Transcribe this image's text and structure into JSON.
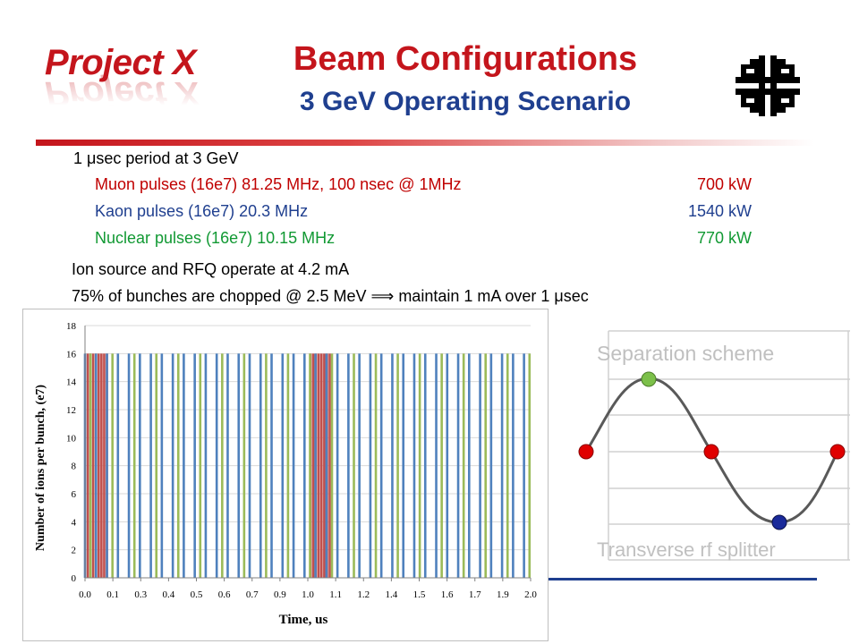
{
  "header": {
    "logo_text": "Project X",
    "title": "Beam Configurations",
    "subtitle": "3 GeV Operating Scenario",
    "fermilab_logo_icon": "fermilab-logo-icon"
  },
  "content": {
    "period_prefix": "1 ",
    "period_mu": "μ",
    "period_suffix": "sec period at 3 GeV",
    "muon": {
      "label": "Muon pulses (16e7) 81.25 MHz, 100 nsec @ 1MHz",
      "power": "700 kW",
      "color": "#c00000"
    },
    "kaon": {
      "label": "Kaon pulses (16e7) 20.3 MHz",
      "power": "1540 kW",
      "color": "#1f3f8f"
    },
    "nuclear": {
      "label": "Nuclear pulses (16e7) 10.15 MHz",
      "power": "770 kW",
      "color": "#119933"
    },
    "ion_source": "Ion source and RFQ operate at 4.2 mA",
    "chop_prefix": "75% of bunches are chopped @ 2.5 MeV ",
    "chop_arrow": "⟹",
    "chop_suffix": " maintain 1 mA over 1 ",
    "chop_mu": "μ",
    "chop_end": "sec"
  },
  "chart_data": {
    "type": "bar",
    "xlabel": "Time, us",
    "ylabel": "Number of ions per bunch, (e7)",
    "ylim": [
      0,
      18
    ],
    "xlim": [
      0,
      2.0
    ],
    "y_ticks": [
      "0",
      "2",
      "4",
      "6",
      "8",
      "10",
      "12",
      "14",
      "16",
      "18"
    ],
    "x_ticks": [
      "0.0",
      "0.1",
      "0.3",
      "0.4",
      "0.5",
      "0.6",
      "0.7",
      "0.9",
      "1.0",
      "1.1",
      "1.2",
      "1.4",
      "1.5",
      "1.6",
      "1.7",
      "1.9",
      "2.0"
    ],
    "grid": "horizontal",
    "series": [
      {
        "color": "#c0504d",
        "values_uniform": 16,
        "x": [
          0.0123,
          0.0246,
          0.0369,
          0.0492,
          0.0615,
          0.0738,
          0.0861,
          0.0984,
          1.0123,
          1.0246,
          1.0369,
          1.0492,
          1.0615,
          1.0738,
          1.0861,
          1.0984
        ]
      },
      {
        "color": "#4f81bd",
        "values_uniform": 16,
        "x": [
          0.0,
          0.0493,
          0.0985,
          0.1478,
          0.197,
          0.2463,
          0.2956,
          0.3448,
          0.3941,
          0.4433,
          0.4926,
          0.5419,
          0.5911,
          0.6404,
          0.6897,
          0.7389,
          0.7882,
          0.8374,
          0.8867,
          0.936,
          0.9852,
          1.0345,
          1.0837,
          1.133,
          1.1823,
          1.2315,
          1.2808,
          1.33,
          1.3793,
          1.4286,
          1.4778,
          1.5271,
          1.5764,
          1.6256,
          1.6749,
          1.7241,
          1.7734,
          1.8227,
          1.8719,
          1.9212,
          1.9704
        ]
      },
      {
        "color": "#9bbb59",
        "values_uniform": 16,
        "x": [
          0.0246,
          0.1232,
          0.2217,
          0.3202,
          0.4187,
          0.5172,
          0.6158,
          0.7143,
          0.8128,
          0.9113,
          1.0099,
          1.1084,
          1.2069,
          1.3054,
          1.4039,
          1.5025,
          1.601,
          1.6995,
          1.798,
          1.8966,
          1.9951
        ]
      }
    ]
  },
  "separation": {
    "title": "Separation scheme",
    "caption": "Transverse rf splitter",
    "marker_colors": {
      "red": "#e00000",
      "green": "#7cc04a",
      "blue": "#1a2a9a"
    }
  }
}
